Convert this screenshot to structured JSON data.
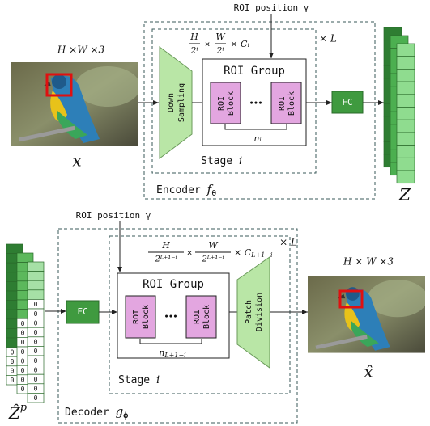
{
  "encoder": {
    "input_size": "H ×W ×3",
    "input_label": "x",
    "roi_position": "ROI position γ",
    "dims": {
      "h": "H",
      "h_den": "2ⁱ",
      "times": "×",
      "w": "W",
      "w_den": "2ⁱ",
      "tail": "× Cᵢ"
    },
    "repeat": "× L",
    "down_sampling": [
      "Down",
      "Sampling"
    ],
    "roi_group": "ROI Group",
    "blocks": [
      [
        "ROI",
        "Block"
      ],
      [
        "ROI",
        "Block"
      ]
    ],
    "ellipsis": "•••",
    "count": "nᵢ",
    "fc": "FC",
    "stage": {
      "word": "Stage",
      "var": "i"
    },
    "name": {
      "word": "Encoder",
      "fn": "f",
      "sub": "θ"
    },
    "output_label": "Z"
  },
  "decoder": {
    "input_label": {
      "base": "Ẑ",
      "sup": "p"
    },
    "zeros": [
      [
        "0",
        "0",
        "0",
        "0"
      ],
      [
        "0",
        "0",
        "0",
        "0",
        "0",
        "0",
        "0",
        "0"
      ],
      [
        "0",
        "0",
        "0",
        "0",
        "0",
        "0",
        "0",
        "0",
        "0",
        "0",
        "0"
      ]
    ],
    "roi_position": "ROI position γ",
    "dims": {
      "h": "H",
      "h_den": "2ᴸ⁺¹⁻ⁱ",
      "times": "×",
      "w": "W",
      "w_den": "2ᴸ⁺¹⁻ⁱ",
      "tail": "× C",
      "tail_sub": "L+1−i"
    },
    "repeat": "× L",
    "fc": "FC",
    "roi_group": "ROI Group",
    "blocks": [
      [
        "ROI",
        "Block"
      ],
      [
        "ROI",
        "Block"
      ]
    ],
    "ellipsis": "•••",
    "count": "n",
    "count_sub": "L+1−i",
    "patch_division": [
      "Patch",
      "Division"
    ],
    "output_size": "H × W ×3",
    "output_label": "x̂",
    "stage": {
      "word": "Stage",
      "var": "i"
    },
    "name": {
      "word": "Decoder",
      "fn": "g",
      "sub": "ϕ"
    }
  }
}
